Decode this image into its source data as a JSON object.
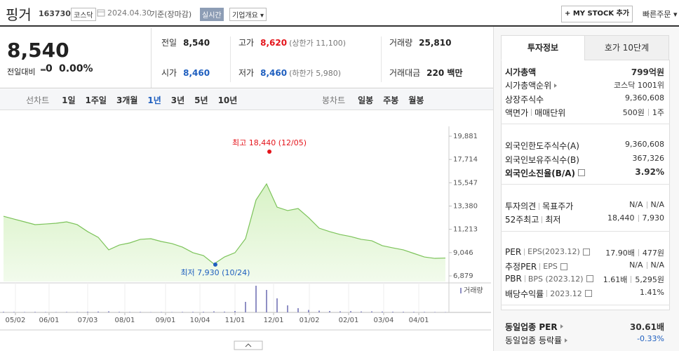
{
  "header": {
    "name": "핑거",
    "code": "163730",
    "market": "코스닥",
    "date": "2024.04.30",
    "basis": "기준(장마감)",
    "realtime": "실시간",
    "overview": "기업개요",
    "mystock": "MY STOCK 추가",
    "quick_order": "빠른주문"
  },
  "price": {
    "current": "8,540",
    "change_label": "전일대비",
    "change": "0",
    "change_rate": "0.00%"
  },
  "quote": [
    [
      {
        "label": "전일",
        "value": "8,540",
        "color": "#222"
      },
      {
        "label": "고가",
        "value": "8,620",
        "sub": "(상한가 11,100)",
        "color": "#e4141b"
      },
      {
        "label": "거래량",
        "value": "25,810",
        "color": "#222"
      }
    ],
    [
      {
        "label": "시가",
        "value": "8,460",
        "color": "#1f5fbf"
      },
      {
        "label": "저가",
        "value": "8,460",
        "sub": "(하한가 5,980)",
        "color": "#1f5fbf"
      },
      {
        "label": "거래대금",
        "value": "220 백만",
        "color": "#222"
      }
    ]
  ],
  "chart_tabs": {
    "line_label": "선차트",
    "line": [
      "1일",
      "1주일",
      "3개월",
      "1년",
      "3년",
      "5년",
      "10년"
    ],
    "selected": 3,
    "candle_label": "봉차트",
    "candle": [
      "일봉",
      "주봉",
      "월봉"
    ]
  },
  "chart_data": {
    "type": "area",
    "series": [
      {
        "color": "#7cc35a",
        "values": [
          12430,
          12170,
          11910,
          11650,
          11710,
          11780,
          11910,
          11650,
          11000,
          10470,
          9300,
          9750,
          9950,
          10280,
          10340,
          10080,
          9890,
          9560,
          9040,
          8770,
          7990,
          8640,
          9040,
          10340,
          13940,
          15440,
          13280,
          12960,
          13150,
          12300,
          11320,
          11000,
          10730,
          10540,
          10280,
          10150,
          9690,
          9490,
          9300,
          8970,
          8640,
          8510,
          8540
        ]
      }
    ],
    "volume": {
      "name": "거래량",
      "color": "#8f8fc4",
      "vlim": [
        0,
        4000000
      ],
      "values": [
        90000,
        70000,
        60000,
        80000,
        60000,
        50000,
        70000,
        60000,
        90000,
        120000,
        150000,
        80000,
        60000,
        70000,
        50000,
        60000,
        50000,
        70000,
        80000,
        90000,
        150000,
        110000,
        200000,
        1500000,
        3800000,
        3200000,
        2000000,
        1000000,
        600000,
        350000,
        250000,
        200000,
        150000,
        180000,
        130000,
        150000,
        120000,
        100000,
        90000,
        80000,
        70000,
        60000,
        50000
      ]
    },
    "ylim": [
      6879,
      19881
    ],
    "yticks": [
      {
        "value": 6879,
        "label": "6,879"
      },
      {
        "value": 9046,
        "label": "9,046"
      },
      {
        "value": 11213,
        "label": "11,213"
      },
      {
        "value": 13380,
        "label": "13,380"
      },
      {
        "value": 15547,
        "label": "15,547"
      },
      {
        "value": 17714,
        "label": "17,714"
      },
      {
        "value": 19881,
        "label": "19,881"
      }
    ],
    "xlim": [
      0,
      42
    ],
    "xticks": [
      {
        "value": 1.13,
        "label": "05/02"
      },
      {
        "value": 4.33,
        "label": "06/01"
      },
      {
        "value": 8,
        "label": "07/03"
      },
      {
        "value": 11.53,
        "label": "08/01"
      },
      {
        "value": 15.4,
        "label": "09/01"
      },
      {
        "value": 18.67,
        "label": "10/04"
      },
      {
        "value": 22,
        "label": "11/01"
      },
      {
        "value": 25.67,
        "label": "12/01"
      },
      {
        "value": 29.07,
        "label": "01/02"
      },
      {
        "value": 32.8,
        "label": "02/01"
      },
      {
        "value": 36.13,
        "label": "03/04"
      },
      {
        "value": 39.47,
        "label": "04/01"
      }
    ],
    "annotations": [
      {
        "text": "최고 18,440 (12/05)",
        "x": 25.27,
        "value": 18440,
        "color": "#e4141b",
        "side": "above"
      },
      {
        "text": "최저 7,930 (10/24)",
        "x": 20.13,
        "value": 7930,
        "color": "#1f5fbf",
        "side": "below"
      }
    ]
  },
  "invest": {
    "tabs": [
      "투자정보",
      "호가 10단계"
    ],
    "groups": [
      [
        {
          "label": [
            "시가총액"
          ],
          "value": [
            "799억원"
          ],
          "bold": true
        },
        {
          "label": [
            "시가총액순위"
          ],
          "value": [
            "코스닥 1001위"
          ],
          "arrow": true
        },
        {
          "label": [
            "상장주식수"
          ],
          "value": [
            "9,360,608"
          ]
        },
        {
          "label": [
            "액면가",
            "매매단위"
          ],
          "value": [
            "500원",
            "1주"
          ]
        }
      ],
      [
        {
          "label": [
            "외국인한도주식수(A)"
          ],
          "value": [
            "9,360,608"
          ]
        },
        {
          "label": [
            "외국인보유주식수(B)"
          ],
          "value": [
            "367,326"
          ]
        },
        {
          "label": [
            "외국인소진율(B/A)"
          ],
          "value": [
            "3.92%"
          ],
          "bold": true,
          "help": true
        }
      ],
      [
        {
          "label": [
            "투자의견",
            "목표주가"
          ],
          "value": [
            "N/A",
            "N/A"
          ]
        },
        {
          "label": [
            "52주최고",
            "최저"
          ],
          "value": [
            "18,440",
            "7,930"
          ]
        }
      ],
      [
        {
          "label": [
            "PER",
            "EPS(2023.12)"
          ],
          "value": [
            "17.90배",
            "477원"
          ],
          "help": true
        },
        {
          "label": [
            "추정PER",
            "EPS"
          ],
          "value": [
            "N/A",
            "N/A"
          ],
          "help": true
        },
        {
          "label": [
            "PBR",
            "BPS (2023.12)"
          ],
          "value": [
            "1.61배",
            "5,295원"
          ],
          "help": true
        },
        {
          "label": [
            "배당수익률",
            "2023.12"
          ],
          "value": [
            "1.41%"
          ],
          "help": true
        }
      ],
      [
        {
          "label": [
            "동일업종 PER"
          ],
          "value": [
            "30.61배"
          ],
          "bold": true,
          "arrow": true
        },
        {
          "label": [
            "동일업종 등락률"
          ],
          "value": [
            "-0.33%"
          ],
          "arrow": true,
          "color": "#1f5fbf"
        }
      ]
    ]
  }
}
